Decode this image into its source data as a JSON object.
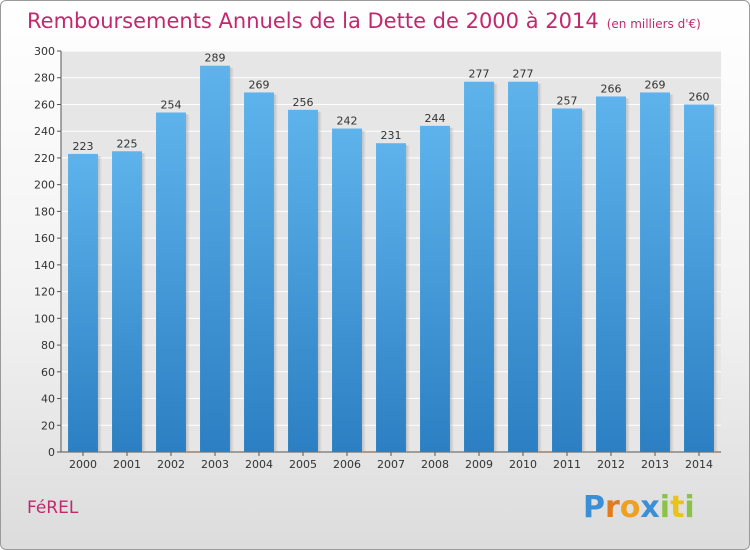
{
  "title": "Remboursements Annuels de la Dette de 2000 à 2014",
  "unit_note": "(en milliers d'€)",
  "commune": "FéREL",
  "logo_text": "Proxiti",
  "colors": {
    "title": "#c3286f",
    "bar_top": "#5eb3ec",
    "bar_bottom": "#2c7fc2",
    "grid": "#ffffff",
    "plot_bg": "#e6e6e6"
  },
  "chart_data": {
    "type": "bar",
    "title": "Remboursements Annuels de la Dette de 2000 à 2014",
    "xlabel": "",
    "ylabel": "",
    "categories": [
      "2000",
      "2001",
      "2002",
      "2003",
      "2004",
      "2005",
      "2006",
      "2007",
      "2008",
      "2009",
      "2010",
      "2011",
      "2012",
      "2013",
      "2014"
    ],
    "values": [
      223,
      225,
      254,
      289,
      269,
      256,
      242,
      231,
      244,
      277,
      277,
      257,
      266,
      269,
      260
    ],
    "ylim": [
      0,
      300
    ],
    "yticks": [
      0,
      20,
      40,
      60,
      80,
      100,
      120,
      140,
      160,
      180,
      200,
      220,
      240,
      260,
      280,
      300
    ],
    "grid": true,
    "data_labels": true
  }
}
